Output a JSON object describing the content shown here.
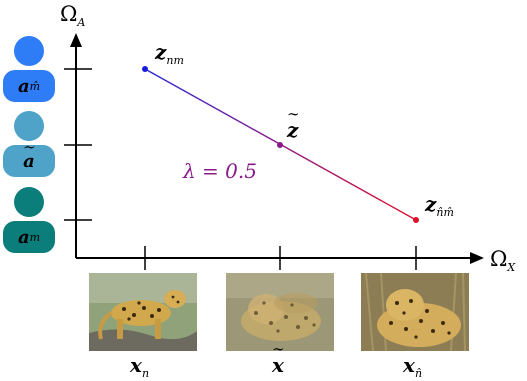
{
  "axes": {
    "y_label": "Ω",
    "y_sub": "A",
    "x_label": "Ω",
    "x_sub": "X"
  },
  "points": {
    "z_nm": {
      "base": "z",
      "sub": "nm",
      "color": "#1a1adc"
    },
    "z_mix": {
      "base": "z",
      "color": "#8a1a8a"
    },
    "z_hat": {
      "base": "z",
      "sub": "n̂m̂",
      "color": "#e0102a"
    }
  },
  "lambda_label": "λ = 0.5",
  "colors": {
    "line_start": "#2a2ad8",
    "line_end": "#e0102a",
    "lambda_text": "#8a1a8a",
    "blue": "#2f7df6",
    "lightblue": "#4fa3c8",
    "teal": "#0b7d7a"
  },
  "legend": [
    {
      "base": "a",
      "sub": "m̂",
      "tilde": false,
      "color": "#2f7df6"
    },
    {
      "base": "a",
      "sub": "",
      "tilde": true,
      "color": "#4fa3c8"
    },
    {
      "base": "a",
      "sub": "m",
      "tilde": false,
      "color": "#0b7d7a"
    }
  ],
  "images": [
    {
      "base": "x",
      "sub": "n",
      "tilde": false,
      "icon": "leopard-standing-photo"
    },
    {
      "base": "x",
      "sub": "",
      "tilde": true,
      "icon": "leopard-blended-photo"
    },
    {
      "base": "x",
      "sub": "n̂",
      "tilde": false,
      "icon": "leopard-lying-photo"
    }
  ]
}
